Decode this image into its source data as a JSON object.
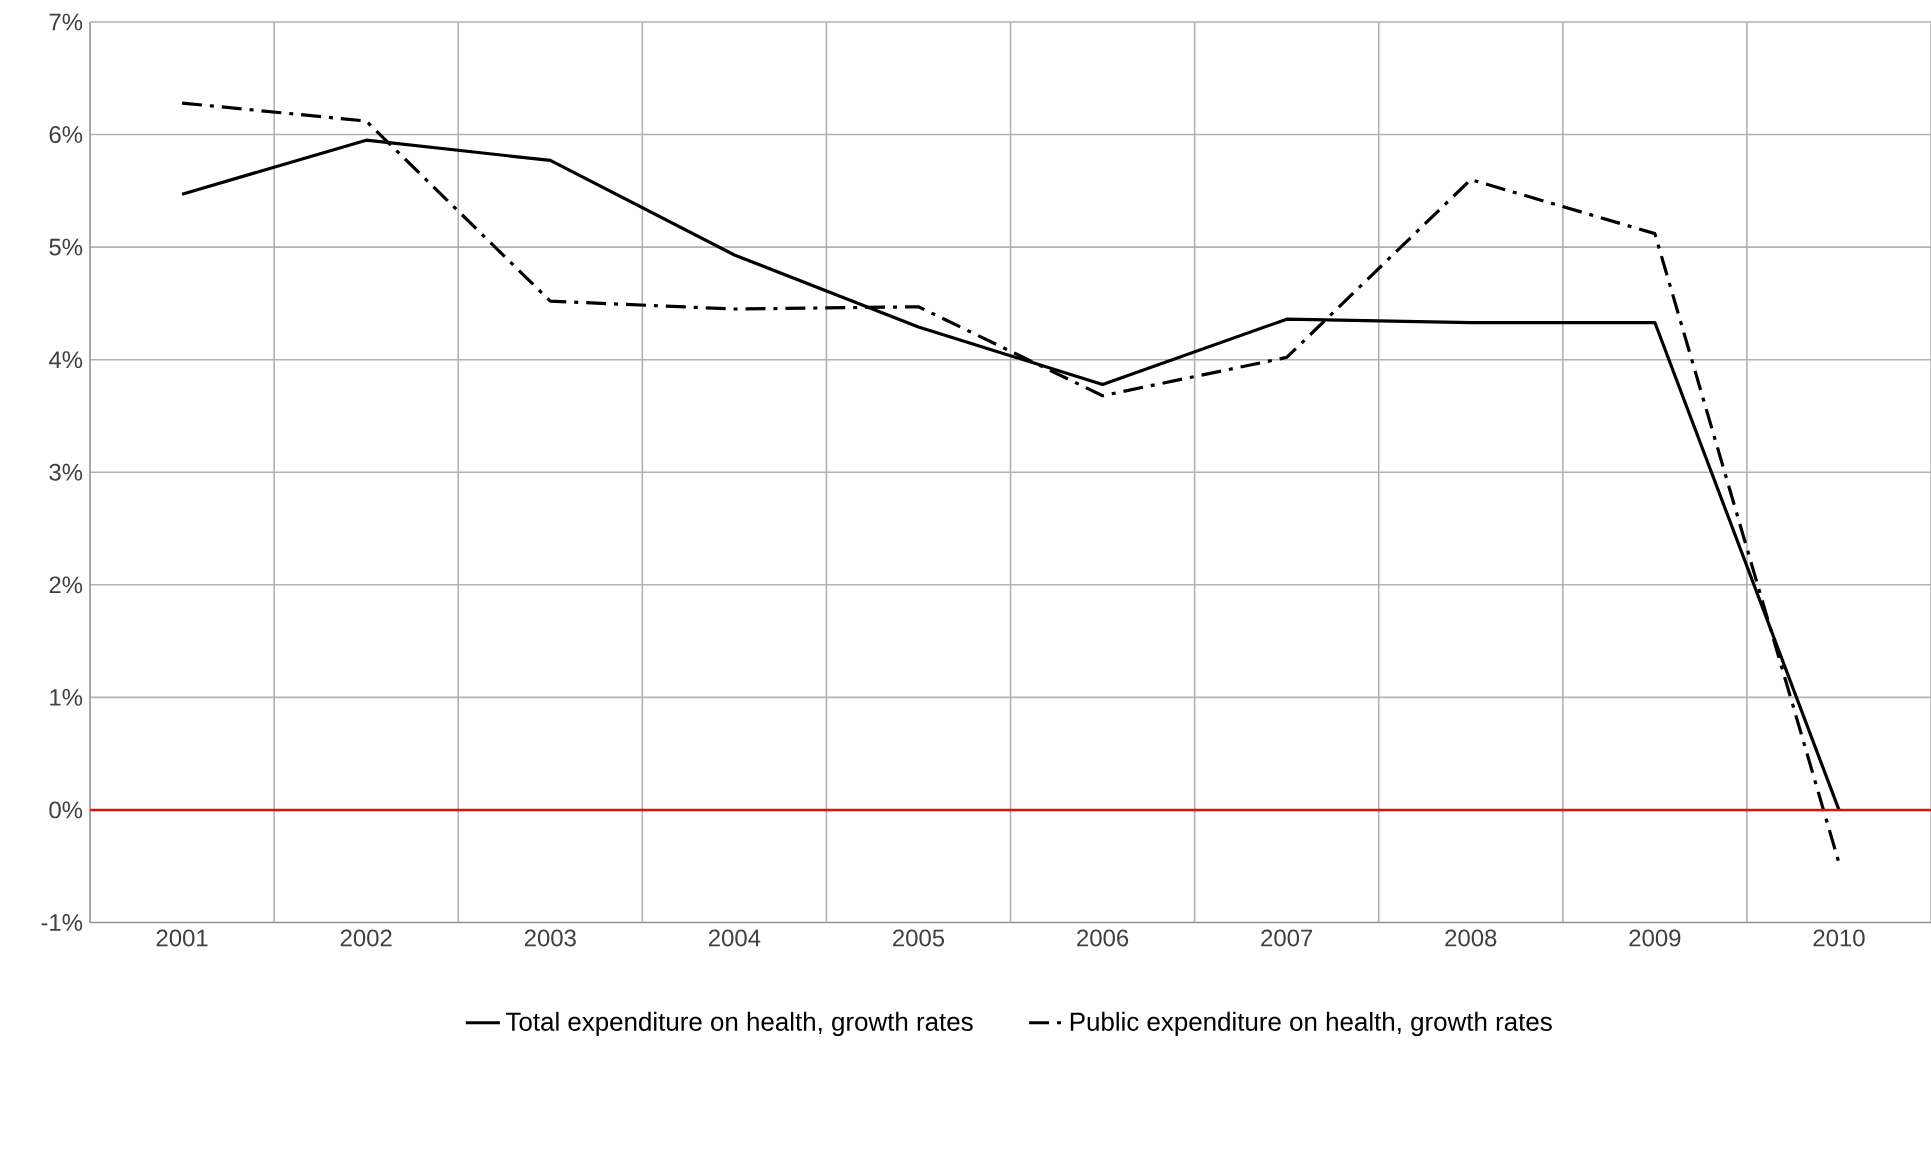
{
  "chart_data": {
    "type": "line",
    "categories": [
      "2001",
      "2002",
      "2003",
      "2004",
      "2005",
      "2006",
      "2007",
      "2008",
      "2009",
      "2010"
    ],
    "series": [
      {
        "name": "Total expenditure on health, growth rates",
        "color": "#000000",
        "line_style": "solid",
        "values": [
          5.47,
          5.95,
          5.77,
          4.93,
          4.29,
          3.78,
          4.36,
          4.33,
          4.33,
          0.0
        ]
      },
      {
        "name": "Public expenditure on health, growth rates",
        "color": "#000000",
        "line_style": "dashdot",
        "values": [
          6.28,
          6.12,
          4.52,
          4.45,
          4.47,
          3.68,
          4.02,
          5.6,
          5.12,
          -0.47
        ]
      }
    ],
    "ylim": [
      -1,
      7
    ],
    "yticks": [
      {
        "value": -1,
        "label": "-1%"
      },
      {
        "value": 0,
        "label": "0%"
      },
      {
        "value": 1,
        "label": "1%"
      },
      {
        "value": 2,
        "label": "2%"
      },
      {
        "value": 3,
        "label": "3%"
      },
      {
        "value": 4,
        "label": "4%"
      },
      {
        "value": 5,
        "label": "5%"
      },
      {
        "value": 6,
        "label": "6%"
      },
      {
        "value": 7,
        "label": "7%"
      }
    ],
    "grid": true,
    "legend": "bottom",
    "marker": "none",
    "ref_lines": [
      {
        "axis": "y",
        "value": 0,
        "color": "#e01010"
      }
    ]
  }
}
